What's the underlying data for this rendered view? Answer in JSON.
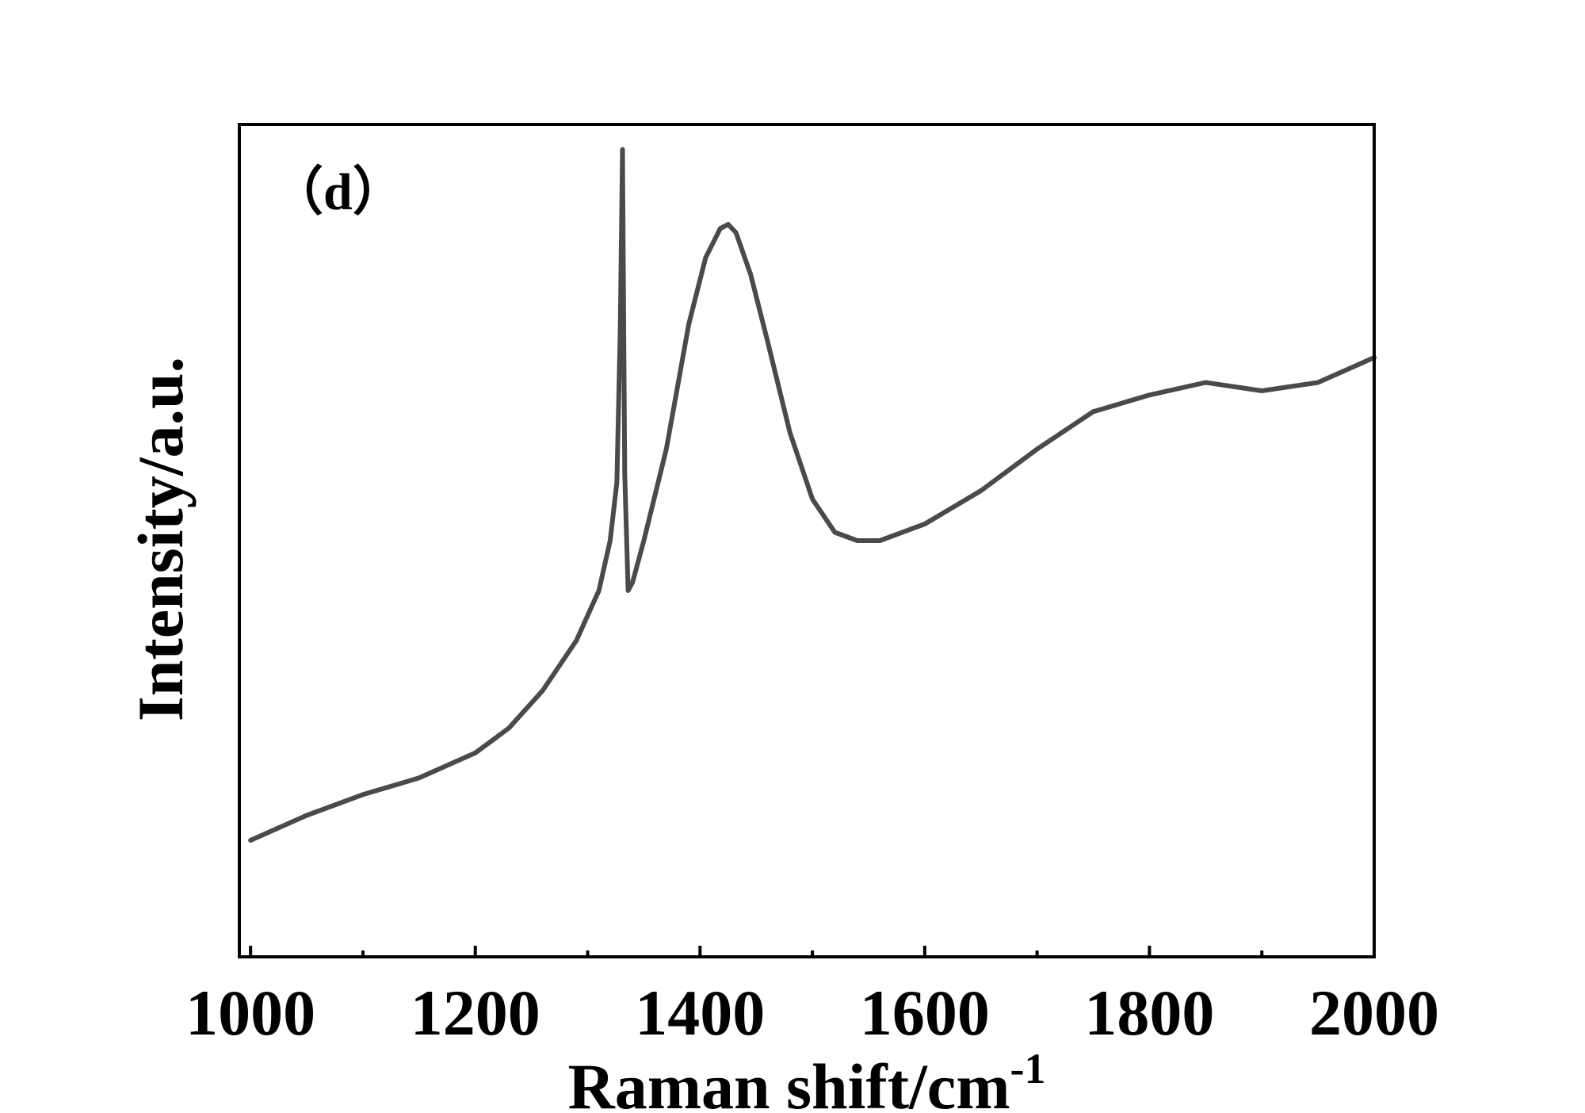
{
  "chart_data": {
    "type": "line",
    "panel_label": "（d）",
    "xlabel": "Raman shift/cm",
    "xlabel_superscript": "-1",
    "ylabel": "Intensity/a.u.",
    "xlim": [
      990,
      2000
    ],
    "ylim": [
      0,
      100
    ],
    "x_ticks": [
      1000,
      1200,
      1400,
      1600,
      1800,
      2000
    ],
    "x_minor_ticks": [
      1100,
      1300,
      1500,
      1700,
      1900
    ],
    "y_tick_labels": false,
    "grid": false,
    "legend": "none",
    "line_color": "#4a4a4a",
    "series": [
      {
        "x": [
          1000,
          1050,
          1100,
          1150,
          1200,
          1230,
          1260,
          1290,
          1310,
          1320,
          1326,
          1329,
          1331,
          1333,
          1336,
          1340,
          1350,
          1370,
          1390,
          1405,
          1418,
          1425,
          1432,
          1445,
          1460,
          1480,
          1500,
          1520,
          1540,
          1560,
          1580,
          1600,
          1650,
          1700,
          1750,
          1800,
          1850,
          1900,
          1950,
          2000
        ],
        "y": [
          14,
          17,
          19.5,
          21.5,
          24.5,
          27.5,
          32,
          38,
          44,
          50,
          57,
          75,
          97,
          58,
          44,
          45,
          50,
          61,
          76,
          84,
          87.5,
          88,
          87,
          82,
          74,
          63,
          55,
          51,
          50,
          50,
          51,
          52,
          56,
          61,
          65.5,
          67.5,
          69,
          68,
          69,
          72
        ]
      }
    ]
  }
}
